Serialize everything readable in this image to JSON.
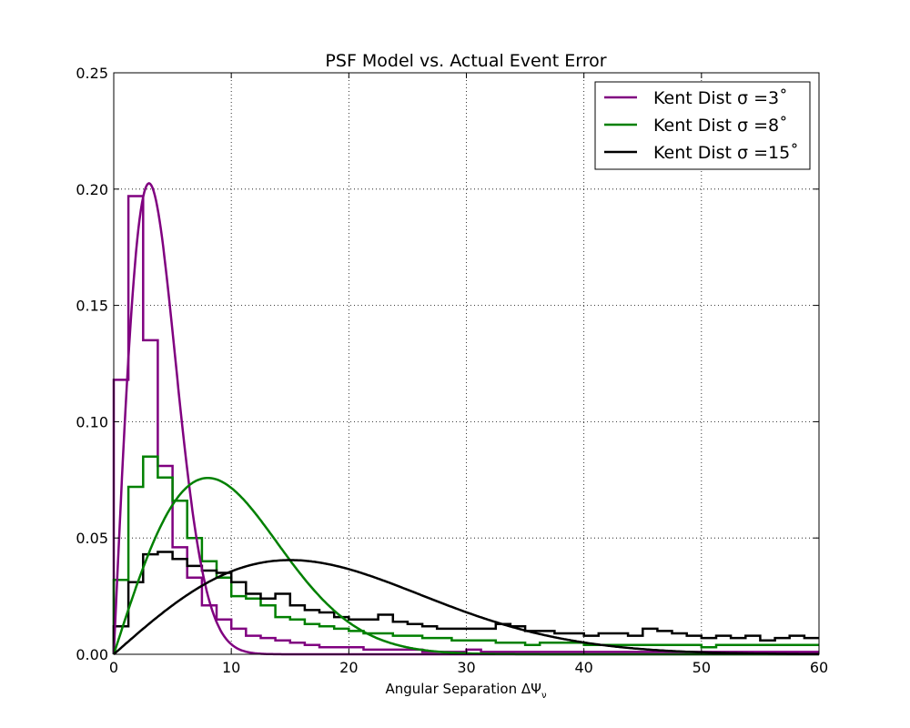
{
  "chart_data": {
    "type": "line",
    "title": "PSF Model vs. Actual Event Error",
    "xlabel": "Angular Separation ΔΨ",
    "xlabel_subscript": "ν",
    "ylabel": "",
    "xlim": [
      0,
      60
    ],
    "ylim": [
      0,
      0.25
    ],
    "xticks": [
      0,
      10,
      20,
      30,
      40,
      50,
      60
    ],
    "yticks": [
      0.0,
      0.05,
      0.1,
      0.15,
      0.2,
      0.25
    ],
    "ytick_labels": [
      "0.00",
      "0.05",
      "0.10",
      "0.15",
      "0.20",
      "0.25"
    ],
    "grid": true,
    "legend_location": "upper right",
    "hist_bin_edges": [
      0,
      1.25,
      2.5,
      3.75,
      5,
      6.25,
      7.5,
      8.75,
      10,
      11.25,
      12.5,
      13.75,
      15,
      16.25,
      17.5,
      18.75,
      20,
      21.25,
      22.5,
      23.75,
      25,
      26.25,
      27.5,
      28.75,
      30,
      31.25,
      32.5,
      33.75,
      35,
      36.25,
      37.5,
      38.75,
      40,
      41.25,
      42.5,
      43.75,
      45,
      46.25,
      47.5,
      48.75,
      50,
      51.25,
      52.5,
      53.75,
      55,
      56.25,
      57.5,
      58.75,
      60
    ],
    "series": [
      {
        "name": "Kent Dist σ =3˚",
        "color": "#800080",
        "peak_x": 3,
        "peak_y": 0.2025,
        "hist": [
          0.118,
          0.197,
          0.135,
          0.081,
          0.046,
          0.033,
          0.021,
          0.015,
          0.011,
          0.008,
          0.007,
          0.006,
          0.005,
          0.004,
          0.003,
          0.003,
          0.003,
          0.002,
          0.002,
          0.002,
          0.002,
          0.001,
          0.001,
          0.001,
          0.002,
          0.001,
          0.001,
          0.001,
          0.001,
          0.001,
          0.001,
          0.001,
          0.001,
          0.001,
          0.001,
          0.001,
          0.001,
          0.001,
          0.001,
          0.001,
          0.001,
          0.001,
          0.001,
          0.001,
          0.001,
          0.001,
          0.001,
          0.001
        ]
      },
      {
        "name": "Kent Dist σ =8˚",
        "color": "#008000",
        "peak_x": 8,
        "peak_y": 0.0758,
        "hist": [
          0.032,
          0.072,
          0.085,
          0.076,
          0.066,
          0.05,
          0.04,
          0.033,
          0.025,
          0.024,
          0.021,
          0.016,
          0.015,
          0.013,
          0.012,
          0.011,
          0.01,
          0.009,
          0.009,
          0.008,
          0.008,
          0.007,
          0.007,
          0.006,
          0.006,
          0.006,
          0.005,
          0.005,
          0.004,
          0.005,
          0.005,
          0.005,
          0.004,
          0.004,
          0.004,
          0.004,
          0.004,
          0.004,
          0.004,
          0.004,
          0.003,
          0.004,
          0.004,
          0.004,
          0.004,
          0.004,
          0.004,
          0.004
        ]
      },
      {
        "name": "Kent Dist σ =15˚",
        "color": "#000000",
        "peak_x": 15,
        "peak_y": 0.0405,
        "hist": [
          0.012,
          0.031,
          0.043,
          0.044,
          0.041,
          0.038,
          0.036,
          0.035,
          0.031,
          0.026,
          0.024,
          0.026,
          0.021,
          0.019,
          0.018,
          0.016,
          0.015,
          0.015,
          0.017,
          0.014,
          0.013,
          0.012,
          0.011,
          0.011,
          0.011,
          0.011,
          0.013,
          0.012,
          0.01,
          0.01,
          0.009,
          0.009,
          0.008,
          0.009,
          0.009,
          0.008,
          0.011,
          0.01,
          0.009,
          0.008,
          0.007,
          0.008,
          0.007,
          0.008,
          0.006,
          0.007,
          0.008,
          0.007
        ]
      }
    ]
  }
}
